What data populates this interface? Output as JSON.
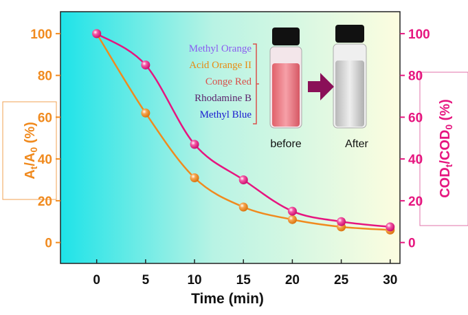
{
  "chart_data": {
    "type": "line",
    "x_label": "Time (min)",
    "y_label_parts": [
      "A",
      "t",
      "/A",
      "0",
      " (%)"
    ],
    "y2_label_parts": [
      "COD",
      "t",
      "/COD",
      "0",
      " (%)"
    ],
    "x": [
      0,
      5,
      10,
      15,
      20,
      25,
      30
    ],
    "series": [
      {
        "color": "#f08a1e",
        "values": [
          100,
          62,
          31,
          17,
          11,
          7.5,
          6
        ]
      },
      {
        "color": "#e6157f",
        "axis": "y2",
        "values": [
          100,
          85,
          47,
          30,
          15,
          10,
          7.5
        ]
      }
    ],
    "xlim": [
      -3.7,
      31
    ],
    "ylim": [
      -10,
      110.5
    ],
    "y2lim": [
      -10,
      110.5
    ],
    "xticks": [
      0,
      5,
      10,
      15,
      20,
      25,
      30
    ],
    "yticks": [
      0,
      20,
      40,
      60,
      80,
      100
    ],
    "y2ticks": [
      0,
      20,
      40,
      60,
      80,
      100
    ],
    "inset": {
      "dyes": [
        {
          "text": "Methyl Orange",
          "color": "#8a5cf0"
        },
        {
          "text": "Acid Orange II",
          "color": "#e88a10"
        },
        {
          "text": "Conge Red",
          "color": "#d9504a"
        },
        {
          "text": "Rhodamine B",
          "color": "#5a1f6a"
        },
        {
          "text": "Methyl Blue",
          "color": "#1a1ad0"
        }
      ],
      "before": "before",
      "after": "After"
    }
  }
}
